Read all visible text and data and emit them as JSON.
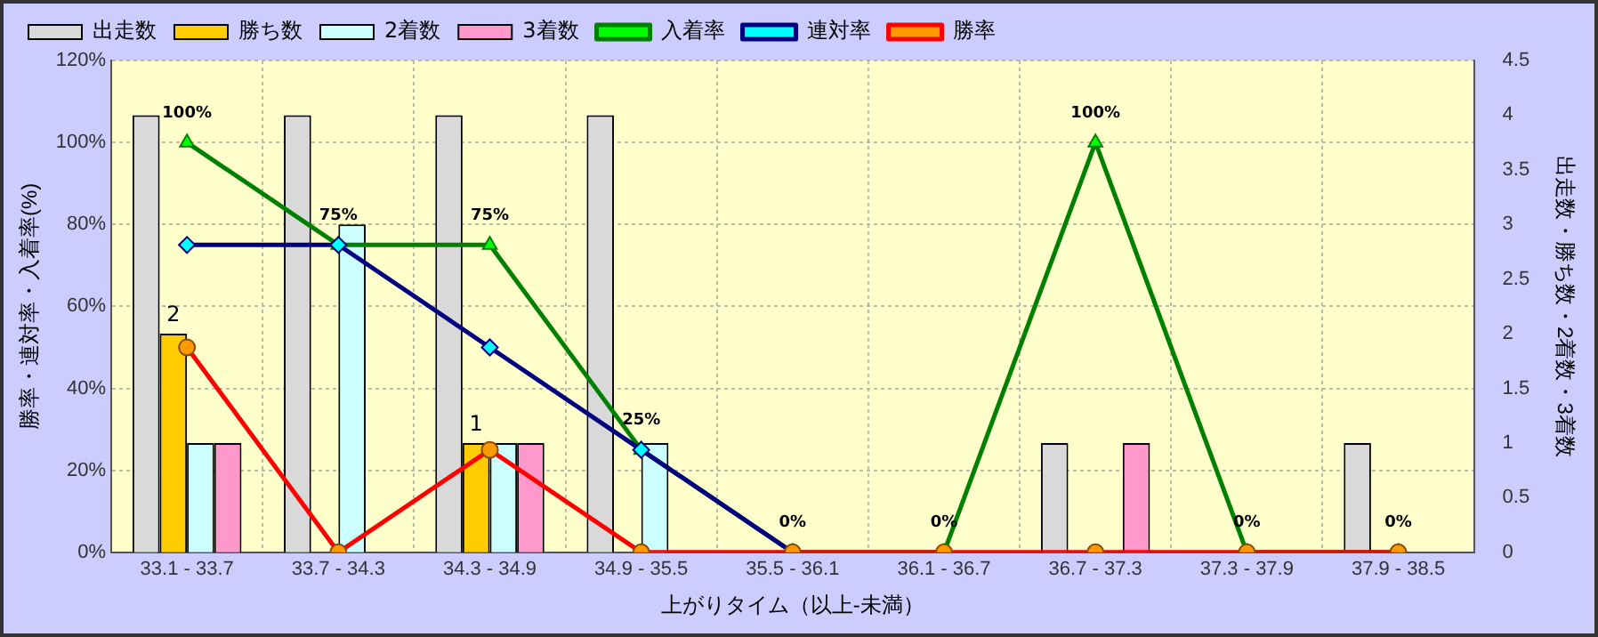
{
  "chart_data": {
    "type": "bar",
    "categories": [
      "33.1 - 33.7",
      "33.7 - 34.3",
      "34.3 - 34.9",
      "34.9 - 35.5",
      "35.5 - 36.1",
      "36.1 - 36.7",
      "36.7 - 37.3",
      "37.3 - 37.9",
      "37.9 - 38.5"
    ],
    "xlabel": "上がりタイム（以上-未満）",
    "ylabel": "勝率・連対率・入着率(%)",
    "y2label": "出走数・勝ち数・2着数・3着数",
    "ylim": [
      0,
      120
    ],
    "yticks": [
      {
        "value": 0,
        "label": "0%"
      },
      {
        "value": 20,
        "label": "20%"
      },
      {
        "value": 40,
        "label": "40%"
      },
      {
        "value": 60,
        "label": "60%"
      },
      {
        "value": 80,
        "label": "80%"
      },
      {
        "value": 100,
        "label": "100%"
      },
      {
        "value": 120,
        "label": "120%"
      }
    ],
    "y2lim": [
      0,
      4.5
    ],
    "y2ticks": [
      0,
      0.5,
      1,
      1.5,
      2,
      2.5,
      3,
      3.5,
      4,
      4.5
    ],
    "grid": true,
    "legend": "top",
    "series": [
      {
        "name": "出走数",
        "axis": "y2",
        "color": "#d9d9d9",
        "values": [
          4,
          4,
          4,
          4,
          0,
          0,
          1,
          0,
          1
        ]
      },
      {
        "name": "勝ち数",
        "axis": "y2",
        "color": "#ffcc00",
        "values": [
          2,
          0,
          1,
          0,
          0,
          0,
          0,
          0,
          0
        ],
        "value_labels": [
          "2",
          null,
          "1",
          null,
          null,
          null,
          null,
          null,
          null
        ]
      },
      {
        "name": "2着数",
        "axis": "y2",
        "color": "#ccffff",
        "values": [
          1,
          3,
          1,
          1,
          0,
          0,
          0,
          0,
          0
        ]
      },
      {
        "name": "3着数",
        "axis": "y2",
        "color": "#ff99cc",
        "values": [
          1,
          0,
          1,
          0,
          0,
          0,
          1,
          0,
          0
        ]
      },
      {
        "name": "入着率",
        "type": "line",
        "marker": "triangle",
        "color": "#008000",
        "values": [
          100,
          75,
          75,
          25,
          0,
          0,
          100,
          0,
          0
        ],
        "value_labels": [
          "100%",
          "75%",
          "75%",
          "25%",
          "0%",
          "0%",
          "100%",
          "0%",
          "0%"
        ]
      },
      {
        "name": "連対率",
        "type": "line",
        "marker": "diamond",
        "color": "#000080",
        "values": [
          75,
          75,
          50,
          25,
          0,
          null,
          null,
          null,
          null
        ]
      },
      {
        "name": "勝率",
        "type": "line",
        "marker": "circle",
        "color": "#ff0000",
        "values": [
          50,
          0,
          25,
          0,
          0,
          0,
          0,
          0,
          0
        ]
      }
    ]
  }
}
